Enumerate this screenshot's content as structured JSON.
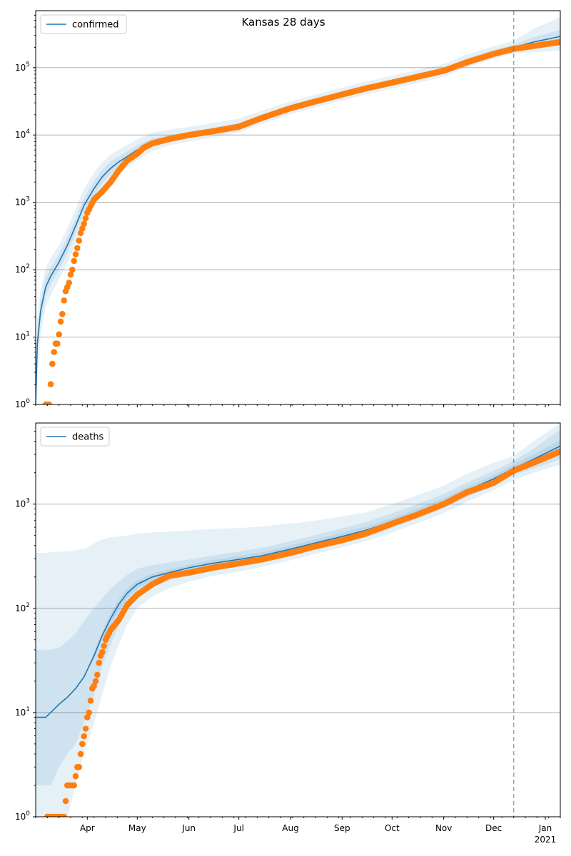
{
  "figure_title": "Kansas 28 days",
  "colors": {
    "model": "#1f77b4",
    "observed": "#ff7f0e",
    "band": "#1f77b4",
    "grid": "#b0b0b0",
    "vline": "#1f77b4"
  },
  "chart_data": [
    {
      "type": "line",
      "legend": "confirmed",
      "legend_position": "top-left",
      "yscale": "log",
      "ylim": [
        1,
        700000
      ],
      "grid": "y",
      "x_range": [
        "2020-03-01",
        "2021-01-10"
      ],
      "x_major_ticks": [
        {
          "date": "2020-04-01",
          "label": "Apr"
        },
        {
          "date": "2020-05-01",
          "label": "May"
        },
        {
          "date": "2020-06-01",
          "label": "Jun"
        },
        {
          "date": "2020-07-01",
          "label": "Jul"
        },
        {
          "date": "2020-08-01",
          "label": "Aug"
        },
        {
          "date": "2020-09-01",
          "label": "Sep"
        },
        {
          "date": "2020-10-01",
          "label": "Oct"
        },
        {
          "date": "2020-11-01",
          "label": "Nov"
        },
        {
          "date": "2020-12-01",
          "label": "Dec"
        },
        {
          "date": "2021-01-01",
          "label": "Jan",
          "sublabel": "2021"
        }
      ],
      "y_ticks": [
        {
          "value": 1,
          "label": "10^0"
        },
        {
          "value": 10,
          "label": "10^1"
        },
        {
          "value": 100,
          "label": "10^2"
        },
        {
          "value": 1000,
          "label": "10^3"
        },
        {
          "value": 10000,
          "label": "10^4"
        },
        {
          "value": 100000,
          "label": "10^5"
        }
      ],
      "forecast_start": "2020-12-13",
      "model": {
        "x": [
          "2020-03-01",
          "2020-03-02",
          "2020-03-04",
          "2020-03-07",
          "2020-03-10",
          "2020-03-15",
          "2020-03-20",
          "2020-03-25",
          "2020-03-30",
          "2020-04-05",
          "2020-04-10",
          "2020-04-15",
          "2020-04-20",
          "2020-04-25",
          "2020-05-01",
          "2020-05-10",
          "2020-05-20",
          "2020-06-01",
          "2020-06-15",
          "2020-07-01",
          "2020-07-15",
          "2020-08-01",
          "2020-08-15",
          "2020-09-01",
          "2020-09-15",
          "2020-10-01",
          "2020-10-15",
          "2020-11-01",
          "2020-11-15",
          "2020-12-01",
          "2020-12-13",
          "2020-12-25",
          "2021-01-10"
        ],
        "y": [
          1,
          8,
          25,
          55,
          80,
          130,
          230,
          450,
          900,
          1600,
          2400,
          3200,
          4000,
          4800,
          6000,
          7800,
          9000,
          10000,
          11500,
          13500,
          18000,
          25000,
          31000,
          40000,
          49000,
          60000,
          72000,
          90000,
          125000,
          165000,
          200000,
          240000,
          290000
        ],
        "band50": {
          "lower": [
            1,
            5,
            17,
            40,
            60,
            100,
            175,
            350,
            700,
            1250,
            1900,
            2600,
            3300,
            4000,
            5000,
            6800,
            8000,
            9000,
            10300,
            12200,
            16300,
            22600,
            28000,
            36000,
            44000,
            54000,
            65000,
            81000,
            113000,
            149000,
            180000,
            205000,
            235000
          ],
          "upper": [
            1,
            12,
            36,
            75,
            108,
            170,
            300,
            580,
            1150,
            2050,
            3050,
            4050,
            4850,
            5700,
            7000,
            9000,
            10000,
            11100,
            12700,
            15000,
            19800,
            27500,
            34000,
            44000,
            54000,
            66000,
            79000,
            99000,
            138000,
            182000,
            220000,
            285000,
            360000
          ]
        },
        "band90": {
          "lower": [
            1,
            3,
            11,
            28,
            42,
            72,
            125,
            250,
            500,
            950,
            1500,
            2100,
            2700,
            3300,
            4200,
            5800,
            7000,
            8000,
            9200,
            11000,
            14600,
            20400,
            25300,
            32500,
            39700,
            48800,
            58600,
            73000,
            101000,
            134000,
            162000,
            170000,
            180000
          ],
          "upper": [
            1,
            18,
            52,
            105,
            150,
            230,
            410,
            800,
            1600,
            2750,
            3950,
            5100,
            6100,
            7100,
            8600,
            10900,
            12000,
            13200,
            15000,
            17500,
            23000,
            31500,
            39000,
            50400,
            61700,
            75600,
            90700,
            113000,
            157000,
            207000,
            250000,
            380000,
            560000
          ]
        }
      },
      "observed": {
        "x": [
          "2020-03-07",
          "2020-03-09",
          "2020-03-11",
          "2020-03-12",
          "2020-03-13",
          "2020-03-14",
          "2020-03-15",
          "2020-03-16",
          "2020-03-17",
          "2020-03-18",
          "2020-03-19",
          "2020-03-20",
          "2020-03-21",
          "2020-03-22",
          "2020-03-23",
          "2020-03-24",
          "2020-03-25",
          "2020-03-26",
          "2020-03-27",
          "2020-03-28",
          "2020-03-30",
          "2020-04-01",
          "2020-04-05",
          "2020-04-10",
          "2020-04-15",
          "2020-04-20",
          "2020-04-25",
          "2020-05-01",
          "2020-05-05",
          "2020-05-10",
          "2020-05-20",
          "2020-06-01",
          "2020-06-15",
          "2020-07-01",
          "2020-07-15",
          "2020-08-01",
          "2020-08-15",
          "2020-09-01",
          "2020-09-15",
          "2020-10-01",
          "2020-10-15",
          "2020-11-01",
          "2020-11-15",
          "2020-12-01",
          "2020-12-13",
          "2020-12-25",
          "2021-01-10"
        ],
        "y": [
          1,
          1,
          4,
          6,
          8,
          8,
          11,
          17,
          22,
          35,
          48,
          55,
          64,
          85,
          100,
          135,
          170,
          210,
          270,
          350,
          480,
          700,
          1100,
          1450,
          2000,
          3000,
          4200,
          5300,
          6500,
          7500,
          8700,
          10000,
          11300,
          13300,
          18000,
          25000,
          31000,
          40000,
          49000,
          60000,
          72000,
          90000,
          120000,
          160000,
          190000,
          210000,
          240000
        ]
      }
    },
    {
      "type": "line",
      "legend": "deaths",
      "legend_position": "top-left",
      "yscale": "log",
      "ylim": [
        1,
        6000
      ],
      "grid": "y",
      "x_range": [
        "2020-03-01",
        "2021-01-10"
      ],
      "x_major_ticks": [
        {
          "date": "2020-04-01",
          "label": "Apr"
        },
        {
          "date": "2020-05-01",
          "label": "May"
        },
        {
          "date": "2020-06-01",
          "label": "Jun"
        },
        {
          "date": "2020-07-01",
          "label": "Jul"
        },
        {
          "date": "2020-08-01",
          "label": "Aug"
        },
        {
          "date": "2020-09-01",
          "label": "Sep"
        },
        {
          "date": "2020-10-01",
          "label": "Oct"
        },
        {
          "date": "2020-11-01",
          "label": "Nov"
        },
        {
          "date": "2020-12-01",
          "label": "Dec"
        },
        {
          "date": "2021-01-01",
          "label": "Jan",
          "sublabel": "2021"
        }
      ],
      "y_ticks": [
        {
          "value": 1,
          "label": "10^0"
        },
        {
          "value": 10,
          "label": "10^1"
        },
        {
          "value": 100,
          "label": "10^2"
        },
        {
          "value": 1000,
          "label": "10^3"
        }
      ],
      "forecast_start": "2020-12-13",
      "model": {
        "x": [
          "2020-03-01",
          "2020-03-07",
          "2020-03-10",
          "2020-03-15",
          "2020-03-20",
          "2020-03-25",
          "2020-03-30",
          "2020-04-05",
          "2020-04-10",
          "2020-04-15",
          "2020-04-20",
          "2020-04-25",
          "2020-05-01",
          "2020-05-10",
          "2020-05-20",
          "2020-06-01",
          "2020-06-15",
          "2020-07-01",
          "2020-07-15",
          "2020-08-01",
          "2020-08-15",
          "2020-09-01",
          "2020-09-15",
          "2020-10-01",
          "2020-10-15",
          "2020-11-01",
          "2020-11-15",
          "2020-12-01",
          "2020-12-13",
          "2020-12-25",
          "2021-01-10"
        ],
        "y": [
          9,
          9,
          10,
          12,
          14,
          17,
          22,
          35,
          55,
          80,
          110,
          140,
          170,
          200,
          220,
          245,
          270,
          295,
          320,
          370,
          420,
          490,
          560,
          680,
          820,
          1050,
          1350,
          1750,
          2200,
          2700,
          3600
        ],
        "band50": {
          "lower": [
            9,
            9,
            10,
            12,
            14,
            17,
            22,
            33,
            50,
            70,
            95,
            125,
            155,
            185,
            205,
            228,
            250,
            272,
            295,
            340,
            385,
            450,
            515,
            625,
            755,
            965,
            1240,
            1610,
            2000,
            2450,
            3100
          ],
          "upper": [
            9,
            9,
            10,
            12,
            14,
            17,
            22,
            38,
            60,
            90,
            123,
            155,
            185,
            215,
            236,
            262,
            290,
            318,
            345,
            400,
            455,
            530,
            605,
            735,
            885,
            1135,
            1460,
            1890,
            2400,
            3000,
            4100
          ]
        },
        "band90": {
          "lower": [
            2,
            2,
            2,
            3,
            4,
            5,
            8,
            15,
            28,
            45,
            68,
            95,
            125,
            160,
            185,
            210,
            235,
            258,
            280,
            325,
            365,
            425,
            485,
            590,
            715,
            910,
            1170,
            1510,
            1900,
            2200,
            2700
          ],
          "upper": [
            40,
            40,
            40,
            42,
            48,
            58,
            75,
            100,
            125,
            155,
            180,
            210,
            240,
            260,
            275,
            295,
            320,
            350,
            380,
            440,
            500,
            585,
            670,
            815,
            980,
            1250,
            1610,
            2090,
            2600,
            3400,
            5200
          ]
        },
        "band99": {
          "lower": [
            1,
            1,
            1,
            1,
            1,
            2,
            4,
            8,
            15,
            28,
            45,
            70,
            100,
            130,
            155,
            180,
            205,
            225,
            250,
            290,
            330,
            385,
            440,
            535,
            645,
            820,
            1055,
            1360,
            1700,
            2000,
            2400
          ],
          "upper": [
            340,
            340,
            345,
            350,
            350,
            360,
            370,
            420,
            460,
            480,
            490,
            500,
            520,
            535,
            545,
            560,
            575,
            590,
            610,
            650,
            690,
            760,
            830,
            1000,
            1200,
            1500,
            1950,
            2500,
            2900,
            4000,
            6000
          ]
        }
      },
      "observed": {
        "x": [
          "2020-03-08",
          "2020-03-10",
          "2020-03-12",
          "2020-03-14",
          "2020-03-16",
          "2020-03-18",
          "2020-03-20",
          "2020-03-22",
          "2020-03-24",
          "2020-03-26",
          "2020-03-27",
          "2020-03-28",
          "2020-03-29",
          "2020-03-31",
          "2020-04-01",
          "2020-04-02",
          "2020-04-03",
          "2020-04-04",
          "2020-04-05",
          "2020-04-06",
          "2020-04-07",
          "2020-04-08",
          "2020-04-09",
          "2020-04-10",
          "2020-04-12",
          "2020-04-15",
          "2020-04-20",
          "2020-04-25",
          "2020-05-01",
          "2020-05-10",
          "2020-05-20",
          "2020-06-01",
          "2020-06-15",
          "2020-07-01",
          "2020-07-15",
          "2020-08-01",
          "2020-08-15",
          "2020-09-01",
          "2020-09-15",
          "2020-10-01",
          "2020-10-15",
          "2020-11-01",
          "2020-11-15",
          "2020-12-01",
          "2020-12-13",
          "2020-12-25",
          "2021-01-10"
        ],
        "y": [
          1,
          1,
          1,
          1,
          1,
          1,
          2,
          2,
          2,
          3,
          3,
          4,
          5,
          7,
          9,
          10,
          13,
          17,
          18,
          20,
          23,
          30,
          35,
          38,
          50,
          62,
          78,
          108,
          135,
          170,
          205,
          220,
          245,
          270,
          295,
          340,
          390,
          450,
          520,
          650,
          780,
          1000,
          1300,
          1600,
          2100,
          2500,
          3200
        ]
      }
    }
  ]
}
